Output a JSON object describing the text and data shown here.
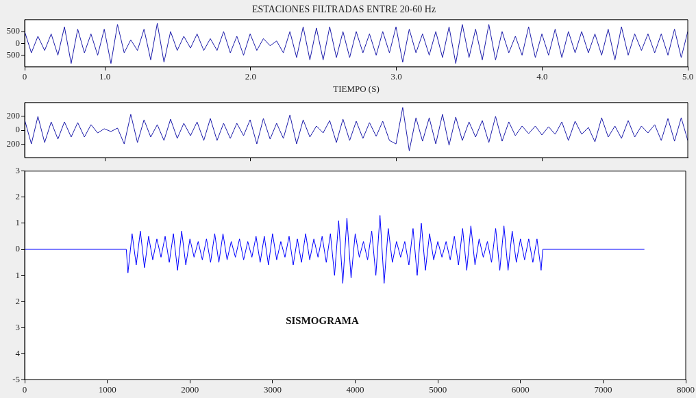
{
  "chart_data": [
    {
      "type": "line",
      "title": "ESTACIONES FILTRADAS ENTRE 20-60 Hz",
      "xlabel": "TIEMPO (S)",
      "color": "#1c1caa",
      "marker": "none",
      "grid": false,
      "xlim": [
        0.45,
        5
      ],
      "xticks": [
        {
          "value": 0.45,
          "label": "0"
        },
        {
          "value": 1,
          "label": "1.0"
        },
        {
          "value": 2,
          "label": "2.0"
        },
        {
          "value": 3,
          "label": "3.0"
        },
        {
          "value": 4,
          "label": "4.0"
        },
        {
          "value": 5,
          "label": "5.0"
        }
      ],
      "ylim": [
        -1000,
        1000
      ],
      "yticks": [
        {
          "value": -500,
          "label": "500"
        },
        0,
        500
      ],
      "x": [
        0.45,
        0.496,
        0.541,
        0.587,
        0.632,
        0.678,
        0.723,
        0.769,
        0.814,
        0.86,
        0.905,
        0.951,
        0.996,
        1.042,
        1.087,
        1.133,
        1.178,
        1.224,
        1.269,
        1.315,
        1.36,
        1.406,
        1.451,
        1.497,
        1.542,
        1.588,
        1.633,
        1.679,
        1.724,
        1.77,
        1.815,
        1.861,
        1.906,
        1.952,
        1.997,
        2.043,
        2.088,
        2.134,
        2.179,
        2.225,
        2.27,
        2.316,
        2.361,
        2.407,
        2.452,
        2.498,
        2.543,
        2.589,
        2.634,
        2.68,
        2.725,
        2.771,
        2.816,
        2.862,
        2.907,
        2.953,
        2.998,
        3.044,
        3.089,
        3.135,
        3.18,
        3.226,
        3.271,
        3.317,
        3.362,
        3.408,
        3.453,
        3.499,
        3.544,
        3.59,
        3.635,
        3.681,
        3.726,
        3.772,
        3.817,
        3.863,
        3.908,
        3.954,
        3.999,
        4.045,
        4.09,
        4.136,
        4.181,
        4.227,
        4.272,
        4.318,
        4.363,
        4.409,
        4.454,
        4.5,
        4.545,
        4.591,
        4.636,
        4.682,
        4.727,
        4.773,
        4.818,
        4.864,
        4.909,
        4.955,
        5
      ],
      "values": [
        500,
        -400,
        300,
        -300,
        400,
        -500,
        700,
        -850,
        600,
        -400,
        400,
        -500,
        600,
        -850,
        800,
        -400,
        150,
        -300,
        600,
        -700,
        850,
        -800,
        500,
        -300,
        300,
        -200,
        400,
        -300,
        200,
        -300,
        500,
        -400,
        300,
        -500,
        400,
        -300,
        200,
        -100,
        100,
        -400,
        500,
        -600,
        700,
        -700,
        650,
        -700,
        700,
        -600,
        500,
        -600,
        500,
        -400,
        400,
        -500,
        500,
        -400,
        700,
        -800,
        600,
        -400,
        400,
        -500,
        500,
        -600,
        700,
        -850,
        800,
        -600,
        600,
        -700,
        800,
        -700,
        500,
        -400,
        300,
        -500,
        700,
        -600,
        400,
        -500,
        600,
        -600,
        500,
        -400,
        500,
        -400,
        400,
        -500,
        600,
        -700,
        700,
        -500,
        400,
        -300,
        400,
        -400,
        400,
        -500,
        600,
        -600,
        500
      ]
    },
    {
      "type": "line",
      "color": "#1c1caa",
      "marker": "none",
      "grid": false,
      "tick_labels": "y",
      "xlim": [
        0.45,
        5
      ],
      "xticks": [
        1,
        2,
        3,
        4
      ],
      "ylim": [
        -400,
        400
      ],
      "yticks": [
        {
          "value": -200,
          "label": "200"
        },
        0,
        200
      ],
      "x": [
        0.45,
        0.496,
        0.541,
        0.587,
        0.632,
        0.678,
        0.723,
        0.769,
        0.814,
        0.86,
        0.905,
        0.951,
        0.996,
        1.042,
        1.087,
        1.133,
        1.178,
        1.224,
        1.269,
        1.315,
        1.36,
        1.406,
        1.451,
        1.497,
        1.542,
        1.588,
        1.633,
        1.679,
        1.724,
        1.77,
        1.815,
        1.861,
        1.906,
        1.952,
        1.997,
        2.043,
        2.088,
        2.134,
        2.179,
        2.225,
        2.27,
        2.316,
        2.361,
        2.407,
        2.452,
        2.498,
        2.543,
        2.589,
        2.634,
        2.68,
        2.725,
        2.771,
        2.816,
        2.862,
        2.907,
        2.953,
        2.998,
        3.044,
        3.089,
        3.135,
        3.18,
        3.226,
        3.271,
        3.317,
        3.362,
        3.408,
        3.453,
        3.499,
        3.544,
        3.59,
        3.635,
        3.681,
        3.726,
        3.772,
        3.817,
        3.863,
        3.908,
        3.954,
        3.999,
        4.045,
        4.09,
        4.136,
        4.181,
        4.227,
        4.272,
        4.318,
        4.363,
        4.409,
        4.454,
        4.5,
        4.545,
        4.591,
        4.636,
        4.682,
        4.727,
        4.773,
        4.818,
        4.864,
        4.909,
        4.955,
        5
      ],
      "values": [
        150,
        -200,
        200,
        -180,
        120,
        -130,
        120,
        -100,
        110,
        -100,
        80,
        -40,
        20,
        -20,
        30,
        -200,
        230,
        -180,
        150,
        -100,
        80,
        -150,
        160,
        -120,
        100,
        -80,
        120,
        -150,
        170,
        -150,
        100,
        -120,
        100,
        -80,
        150,
        -200,
        170,
        -130,
        100,
        -120,
        220,
        -200,
        150,
        -100,
        60,
        -40,
        140,
        -180,
        160,
        -150,
        130,
        -120,
        110,
        -90,
        130,
        -150,
        -200,
        330,
        -300,
        180,
        -160,
        180,
        -200,
        230,
        -220,
        190,
        -150,
        120,
        -100,
        140,
        -180,
        200,
        -160,
        120,
        -80,
        60,
        -50,
        60,
        -70,
        50,
        -60,
        120,
        -150,
        130,
        -60,
        40,
        -170,
        180,
        -100,
        60,
        -120,
        140,
        -100,
        60,
        -40,
        80,
        -150,
        170,
        -160,
        180,
        -150
      ]
    },
    {
      "type": "line",
      "color": "#0000ff",
      "marker": "none",
      "grid": false,
      "annotations": [
        "SISMOGRAMA"
      ],
      "xlim": [
        0,
        8000
      ],
      "xticks": [
        0,
        1000,
        2000,
        3000,
        4000,
        5000,
        6000,
        7000,
        8000
      ],
      "ylim": [
        -5,
        3
      ],
      "yticks": [
        {
          "value": -5,
          "label": "-5"
        },
        {
          "value": -4,
          "label": "4"
        },
        {
          "value": -3,
          "label": "3"
        },
        {
          "value": -2,
          "label": "2"
        },
        {
          "value": -1,
          "label": "1"
        },
        0,
        1,
        2,
        3
      ],
      "x": [
        0,
        1230,
        1250,
        1300,
        1350,
        1400,
        1450,
        1500,
        1550,
        1600,
        1650,
        1700,
        1750,
        1800,
        1850,
        1900,
        1950,
        2000,
        2050,
        2100,
        2150,
        2200,
        2250,
        2300,
        2350,
        2400,
        2450,
        2500,
        2550,
        2600,
        2650,
        2700,
        2750,
        2800,
        2850,
        2900,
        2950,
        3000,
        3050,
        3100,
        3150,
        3200,
        3250,
        3300,
        3350,
        3400,
        3450,
        3500,
        3550,
        3600,
        3650,
        3700,
        3750,
        3800,
        3850,
        3900,
        3950,
        4000,
        4050,
        4100,
        4150,
        4200,
        4250,
        4300,
        4350,
        4400,
        4450,
        4500,
        4550,
        4600,
        4650,
        4700,
        4750,
        4800,
        4850,
        4900,
        4950,
        5000,
        5050,
        5100,
        5150,
        5200,
        5250,
        5300,
        5350,
        5400,
        5450,
        5500,
        5550,
        5600,
        5650,
        5700,
        5750,
        5800,
        5850,
        5900,
        5950,
        6000,
        6050,
        6100,
        6150,
        6200,
        6250,
        6270,
        7500
      ],
      "values": [
        0,
        0,
        -0.9,
        0.6,
        -0.6,
        0.7,
        -0.7,
        0.5,
        -0.4,
        0.4,
        -0.3,
        0.5,
        -0.5,
        0.6,
        -0.8,
        0.7,
        -0.6,
        0.4,
        -0.3,
        0.3,
        -0.4,
        0.4,
        -0.5,
        0.6,
        -0.5,
        0.6,
        -0.4,
        0.3,
        -0.3,
        0.4,
        -0.4,
        0.3,
        -0.3,
        0.5,
        -0.5,
        0.5,
        -0.6,
        0.6,
        -0.4,
        0.3,
        -0.3,
        0.5,
        -0.6,
        0.4,
        -0.5,
        0.6,
        -0.4,
        0.4,
        -0.3,
        0.5,
        -0.5,
        0.6,
        -1.0,
        1.1,
        -1.3,
        1.2,
        -1.1,
        0.6,
        -0.3,
        0.3,
        -0.4,
        0.7,
        -1.0,
        1.3,
        -1.3,
        0.8,
        -0.5,
        0.3,
        -0.3,
        0.3,
        -0.6,
        0.8,
        -1.0,
        1.0,
        -0.8,
        0.6,
        -0.4,
        0.3,
        -0.3,
        0.3,
        -0.4,
        0.5,
        -0.6,
        0.8,
        -0.8,
        0.9,
        -0.6,
        0.4,
        -0.3,
        0.3,
        -0.5,
        0.8,
        -0.8,
        0.9,
        -0.8,
        0.7,
        -0.5,
        0.4,
        -0.4,
        0.4,
        -0.5,
        0.4,
        -0.8,
        0,
        0
      ]
    }
  ]
}
